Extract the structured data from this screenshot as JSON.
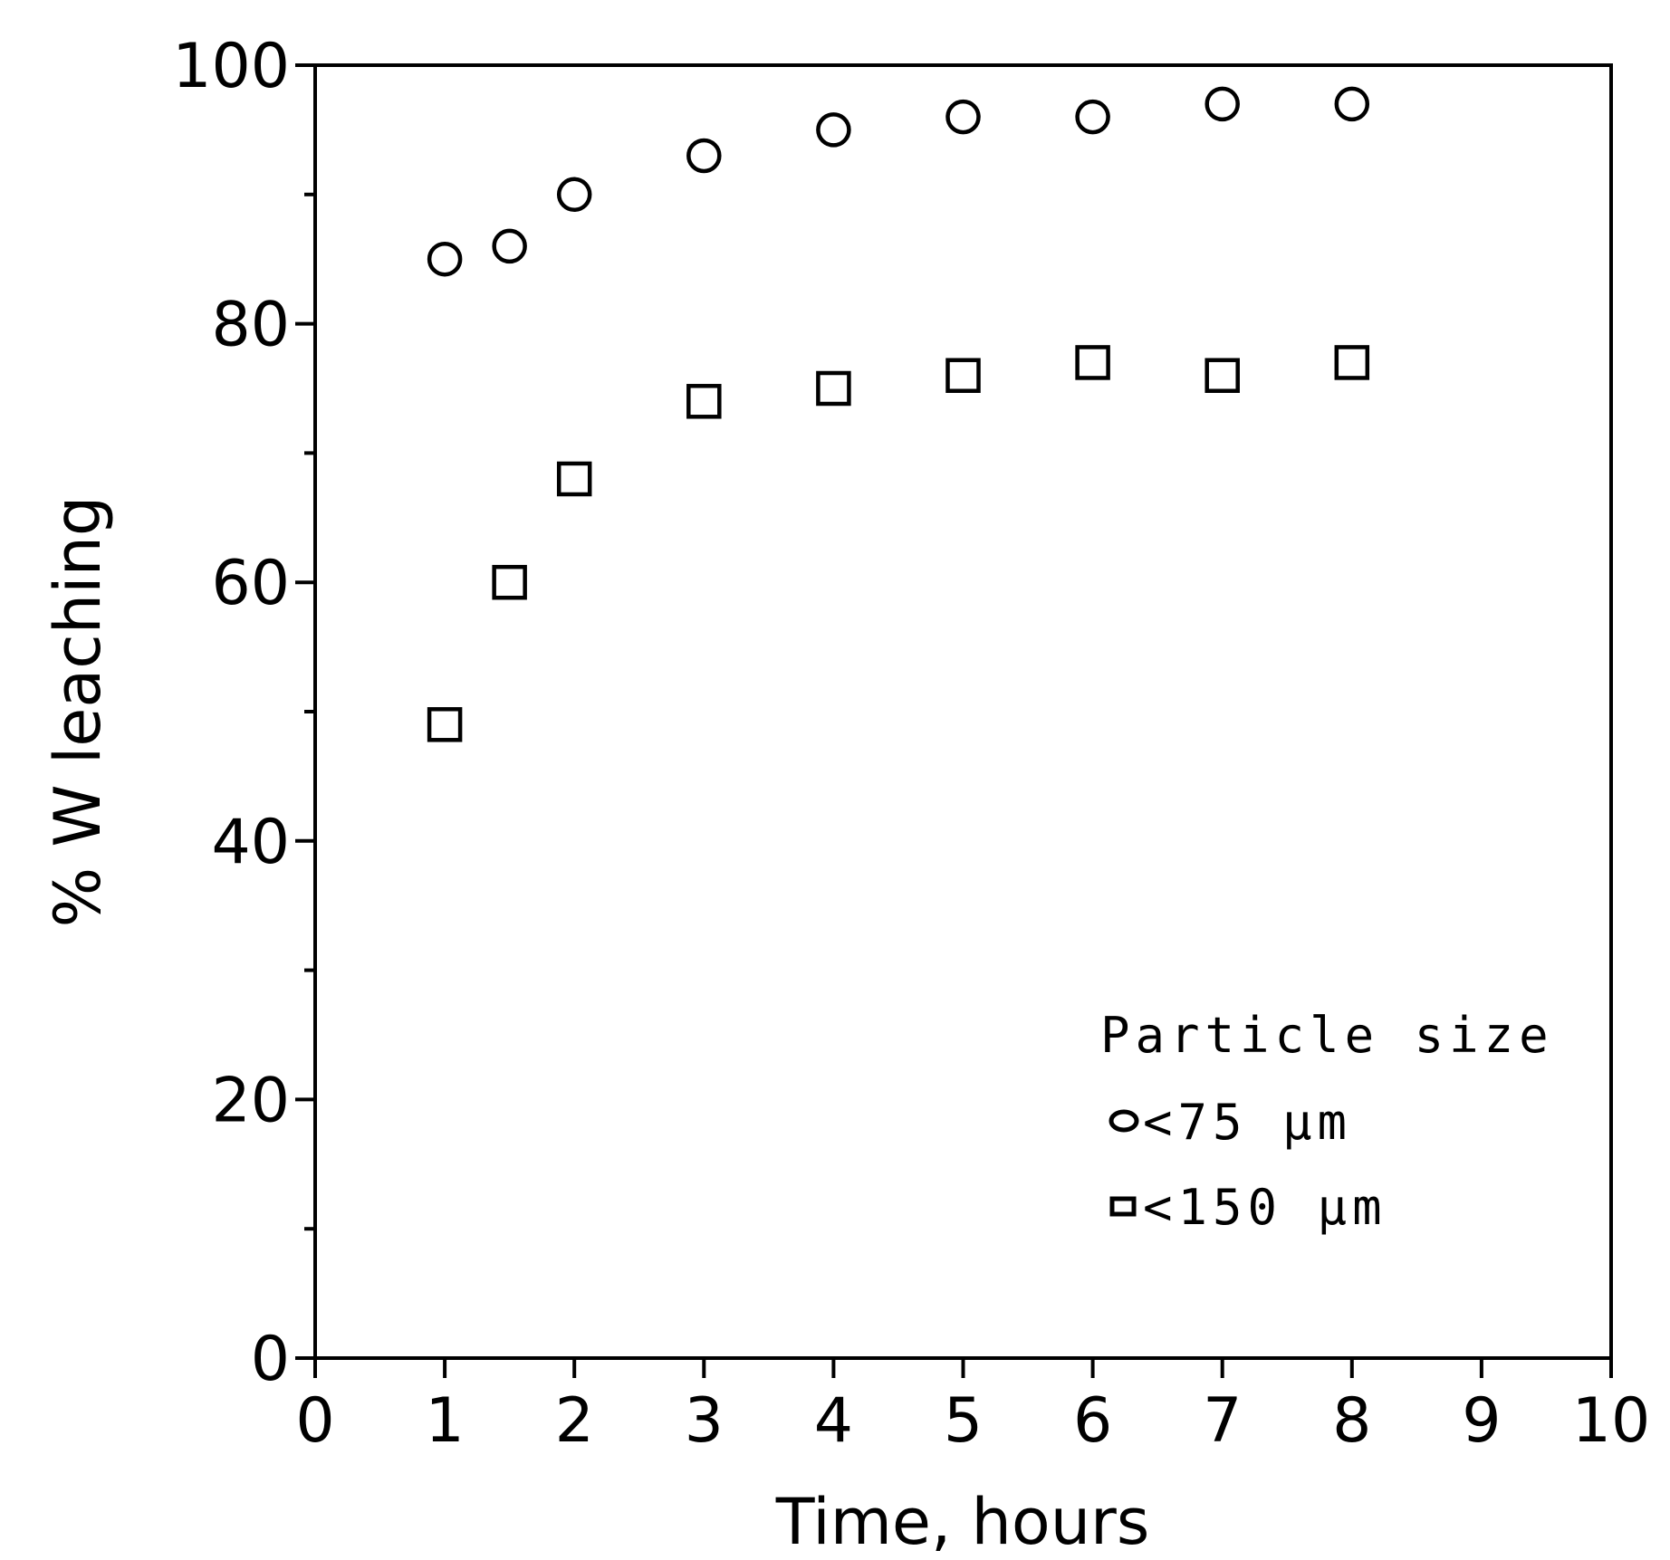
{
  "chart_data": {
    "type": "scatter",
    "xlabel": "Time, hours",
    "ylabel": "% W leaching",
    "xlim": [
      0,
      10
    ],
    "ylim": [
      0,
      100
    ],
    "x_ticks": [
      "0",
      "1",
      "2",
      "3",
      "4",
      "5",
      "6",
      "7",
      "8",
      "9",
      "10"
    ],
    "y_ticks": [
      "0",
      "20",
      "40",
      "60",
      "80",
      "100"
    ],
    "y_minor_ticks": [
      10,
      30,
      50,
      70,
      90
    ],
    "grid": false,
    "legend": {
      "title": "Particle size",
      "placement": "lower-right"
    },
    "series": [
      {
        "name": "<75 µm",
        "marker": "circle",
        "x": [
          1,
          1.5,
          2,
          3,
          4,
          5,
          6,
          7,
          8
        ],
        "y": [
          85,
          86,
          90,
          93,
          95,
          96,
          96,
          97,
          97
        ]
      },
      {
        "name": "<150 µm",
        "marker": "square",
        "x": [
          1,
          1.5,
          2,
          3,
          4,
          5,
          6,
          7,
          8
        ],
        "y": [
          49,
          60,
          68,
          74,
          75,
          76,
          77,
          76,
          77
        ]
      }
    ]
  }
}
